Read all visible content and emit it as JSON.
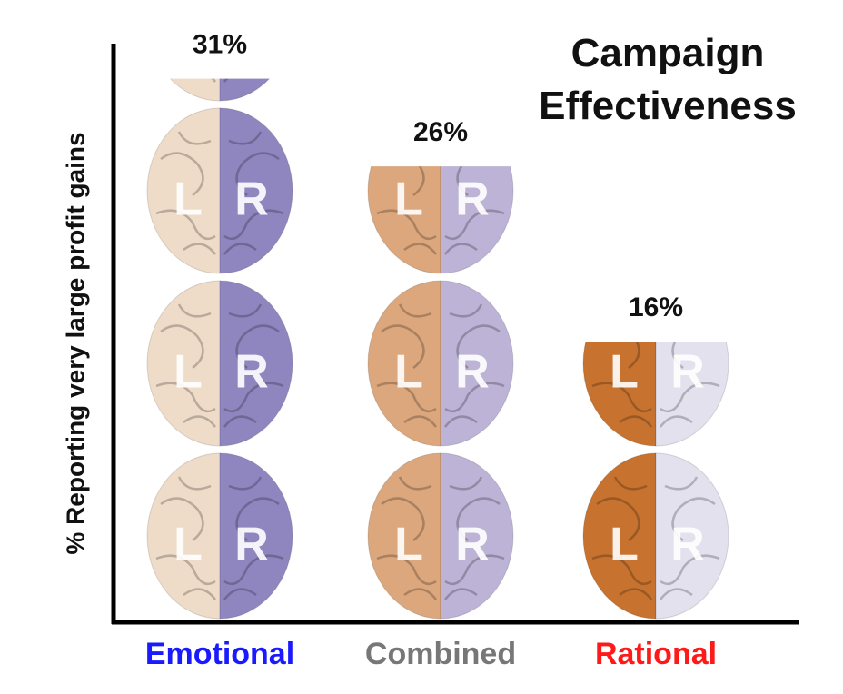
{
  "chart_data": {
    "type": "pictograph",
    "title": "Campaign Effectiveness",
    "y_label": "% Reporting very large profit gains",
    "categories": [
      "Emotional",
      "Combined",
      "Rational"
    ],
    "values": [
      31,
      26,
      16
    ],
    "value_labels": [
      "31%",
      "26%",
      "16%"
    ],
    "label_colors": [
      "#1a1aff",
      "#777777",
      "#ff1a1a"
    ],
    "brain_colors": [
      [
        "#efdcc8",
        "#8f86c0"
      ],
      [
        "#dca77c",
        "#bdb3d6"
      ],
      [
        "#c7732f",
        "#e4e1ee"
      ]
    ],
    "brain_letters": [
      "L",
      "R"
    ],
    "ylim": [
      0,
      33
    ]
  }
}
